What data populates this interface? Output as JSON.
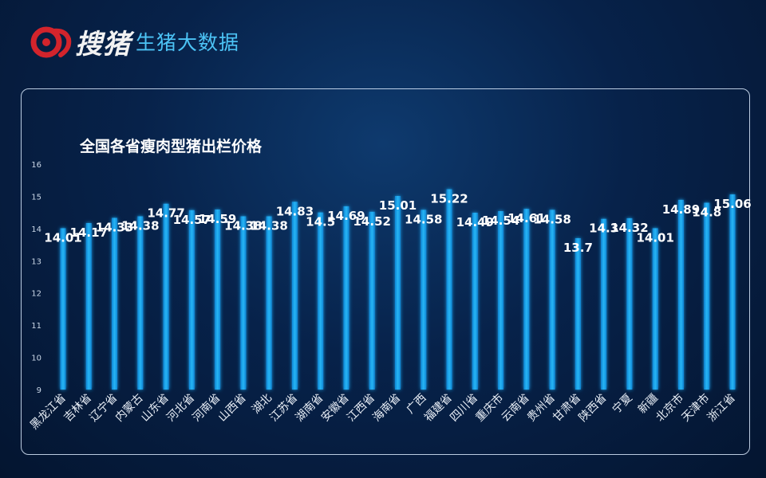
{
  "header": {
    "brand_name": "搜猪",
    "brand_subtitle": "生猪大数据"
  },
  "colors": {
    "bar": "#1aa3e8",
    "bar_glow": "#5fd0ff",
    "label": "#ffffff",
    "axis_text": "#c9d6e6",
    "accent": "#4cc3f5",
    "logo_red": "#d3242c"
  },
  "chart_data": {
    "type": "bar",
    "title": "全国各省瘦肉型猪出栏价格",
    "xlabel": "",
    "ylabel": "",
    "ylim": [
      9,
      16
    ],
    "yticks": [
      9,
      10,
      11,
      12,
      13,
      14,
      15,
      16
    ],
    "grid": false,
    "legend": "none",
    "categories": [
      "黑龙江省",
      "吉林省",
      "辽宁省",
      "内蒙古",
      "山东省",
      "河北省",
      "河南省",
      "山西省",
      "湖北",
      "江苏省",
      "湖南省",
      "安徽省",
      "江西省",
      "海南省",
      "广西",
      "福建省",
      "四川省",
      "重庆市",
      "云南省",
      "贵州省",
      "甘肃省",
      "陕西省",
      "宁夏",
      "新疆",
      "北京市",
      "天津市",
      "浙江省"
    ],
    "values": [
      14.01,
      14.17,
      14.33,
      14.38,
      14.77,
      14.57,
      14.59,
      14.38,
      14.38,
      14.83,
      14.5,
      14.69,
      14.52,
      15.01,
      14.58,
      15.22,
      14.49,
      14.54,
      14.61,
      14.58,
      13.7,
      14.3,
      14.32,
      14.01,
      14.89,
      14.8,
      15.06
    ],
    "data_labels": [
      "14.01",
      "14.17",
      "14.33",
      "14.38",
      "14.77",
      "14.57",
      "14.59",
      "14.38",
      "14.38",
      "14.83",
      "14.5",
      "14.69",
      "14.52",
      "15.01",
      "14.58",
      "15.22",
      "14.49",
      "14.54",
      "14.61",
      "14.58",
      "13.7",
      "14.3",
      "14.32",
      "14.01",
      "14.89",
      "14.8",
      "15.06"
    ]
  }
}
